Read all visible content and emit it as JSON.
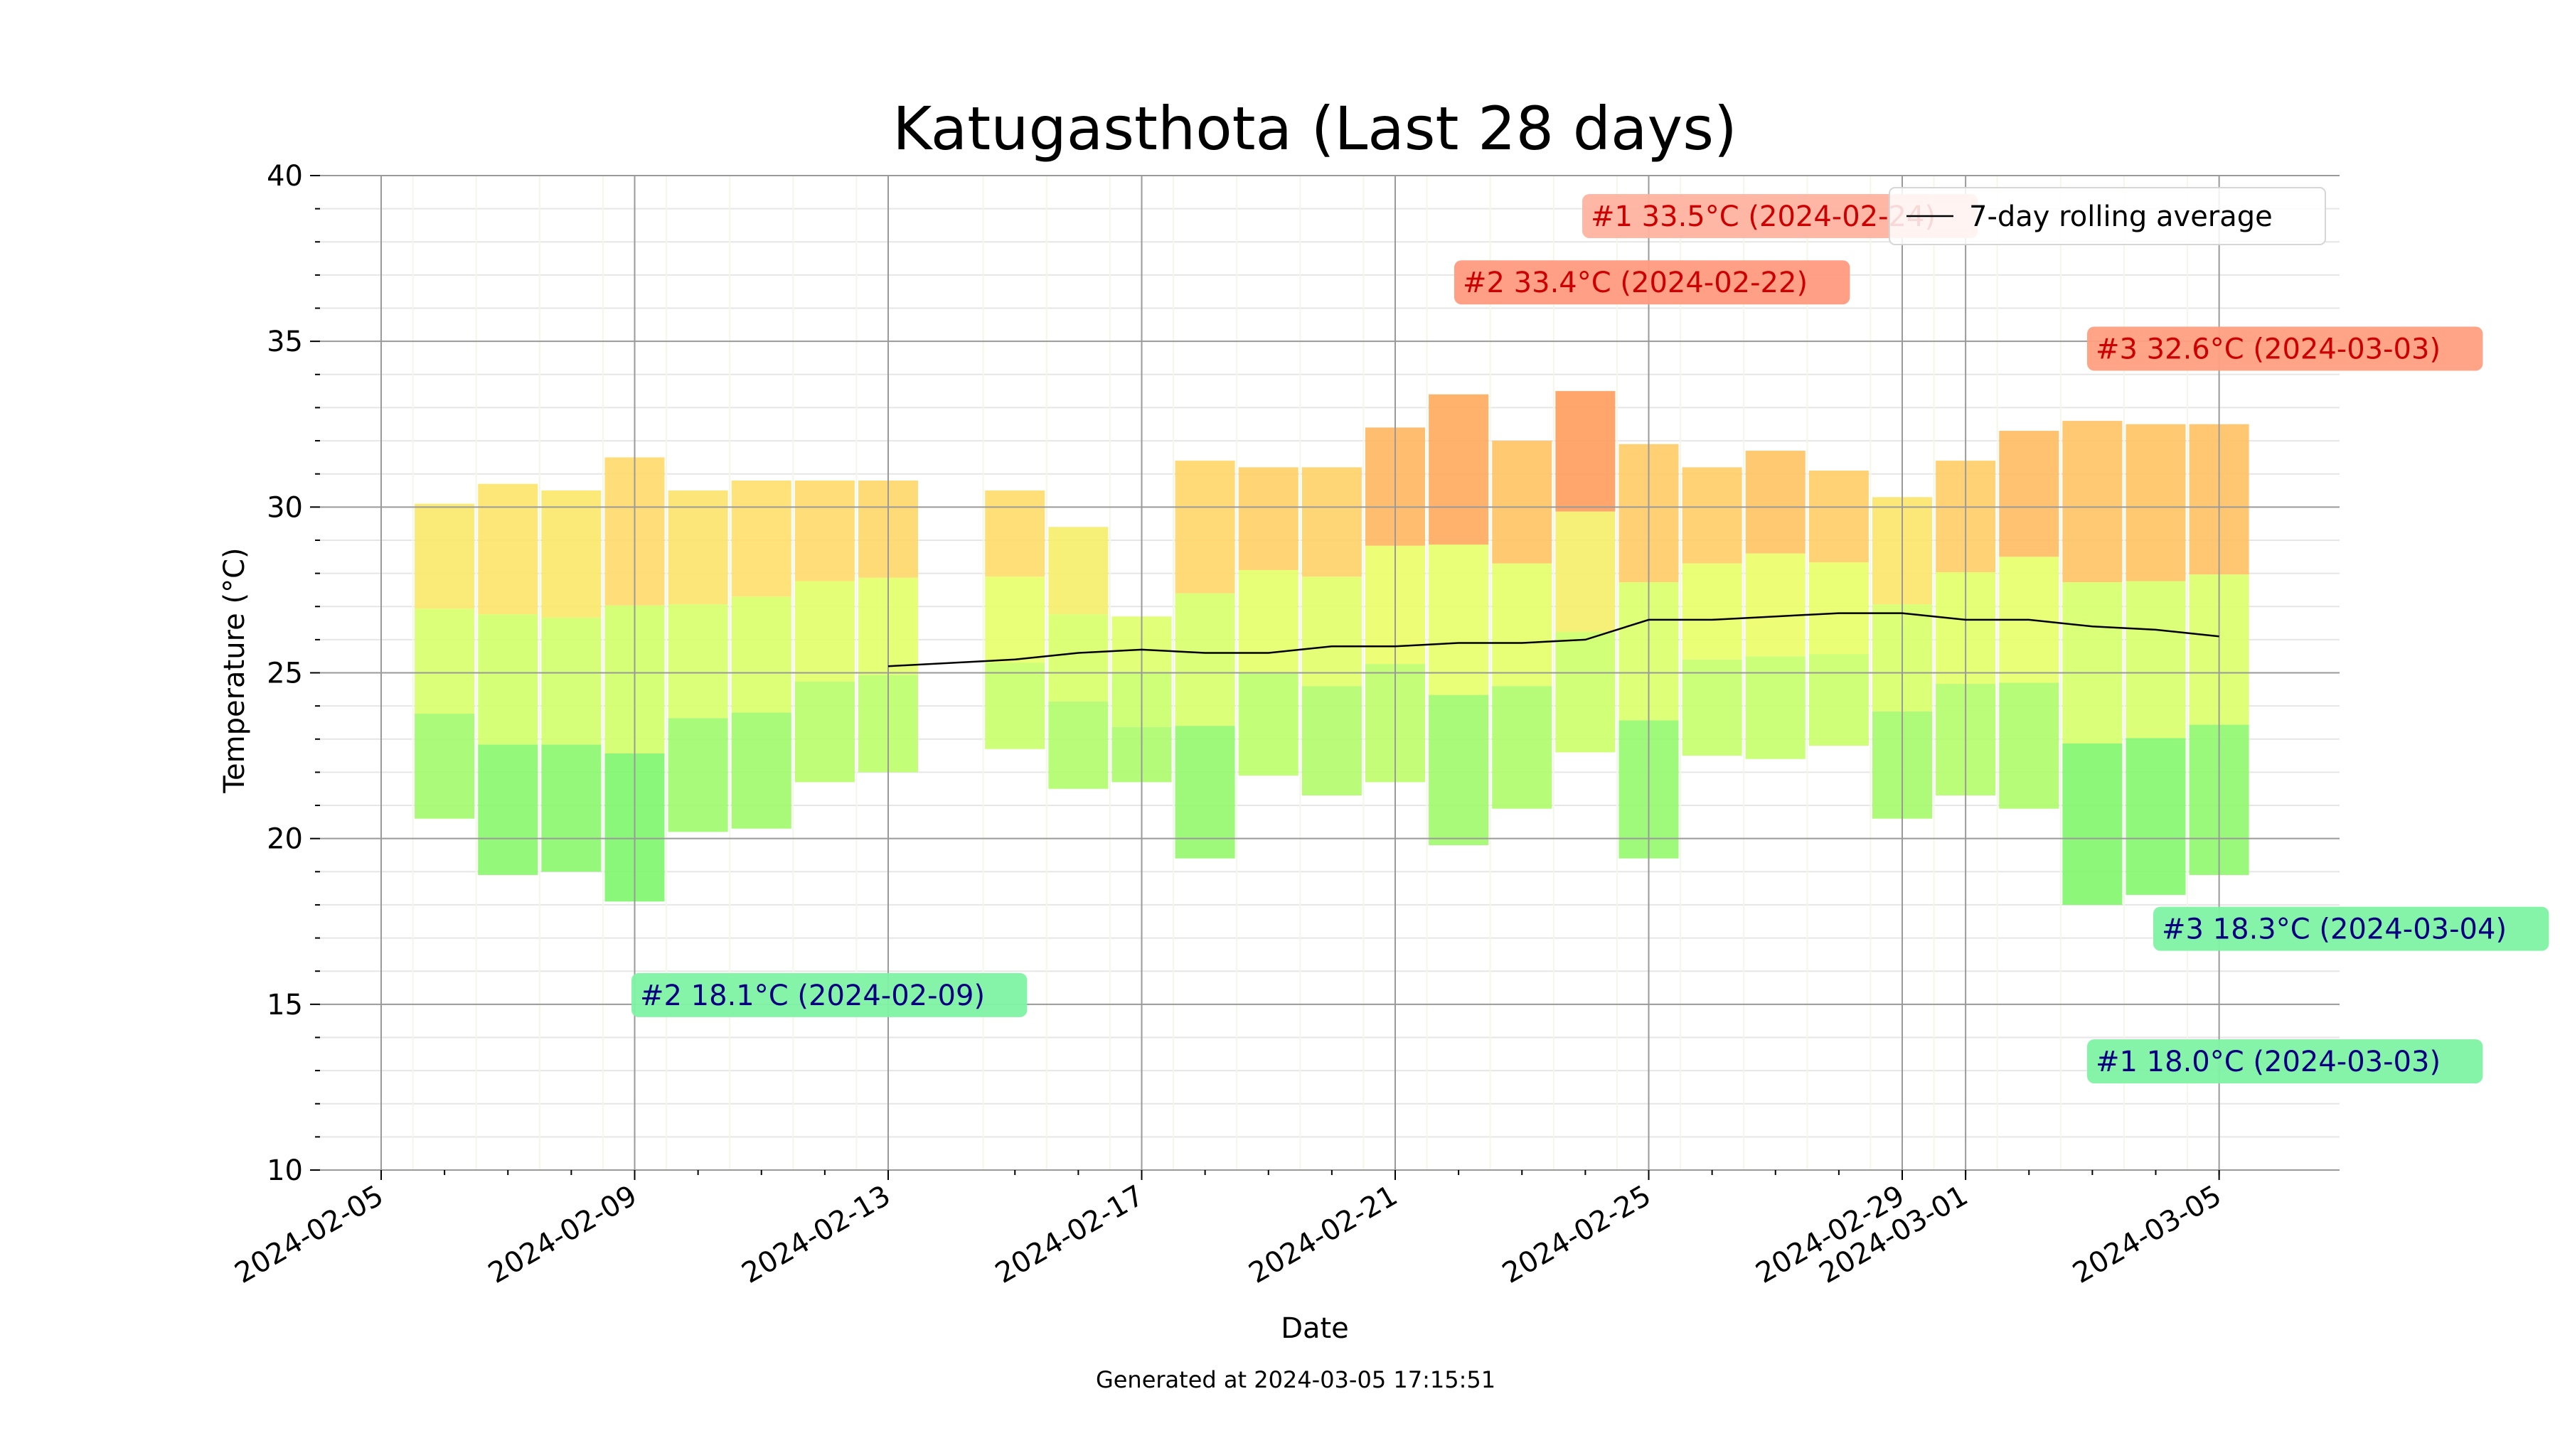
{
  "chart_data": {
    "type": "bar",
    "title": "Katugasthota (Last 28 days)",
    "xlabel": "Date",
    "ylabel": "Temperature (°C)",
    "footer": "Generated at 2024-03-05 17:15:51",
    "ylim": [
      10,
      40
    ],
    "y_ticks": [
      "10",
      "15",
      "20",
      "25",
      "30",
      "35",
      "40"
    ],
    "x_ticks": [
      "2024-02-05",
      "2024-02-09",
      "2024-02-13",
      "2024-02-17",
      "2024-02-21",
      "2024-02-25",
      "2024-02-29",
      "2024-03-01",
      "2024-03-05"
    ],
    "xlim": [
      "2024-02-05",
      "2024-03-07"
    ],
    "grid": true,
    "legend": {
      "position": "top-right",
      "entries": [
        "7-day rolling average"
      ]
    },
    "days": [
      {
        "date": "2024-02-06",
        "min": 20.6,
        "max": 30.1
      },
      {
        "date": "2024-02-07",
        "min": 18.9,
        "max": 30.7
      },
      {
        "date": "2024-02-08",
        "min": 19.0,
        "max": 30.5
      },
      {
        "date": "2024-02-09",
        "min": 18.1,
        "max": 31.5
      },
      {
        "date": "2024-02-10",
        "min": 20.2,
        "max": 30.5
      },
      {
        "date": "2024-02-11",
        "min": 20.3,
        "max": 30.8
      },
      {
        "date": "2024-02-12",
        "min": 21.7,
        "max": 30.8
      },
      {
        "date": "2024-02-13",
        "min": 22.0,
        "max": 30.8
      },
      {
        "date": "2024-02-15",
        "min": 22.7,
        "max": 30.5
      },
      {
        "date": "2024-02-16",
        "min": 21.5,
        "max": 29.4
      },
      {
        "date": "2024-02-17",
        "min": 21.7,
        "max": 26.7
      },
      {
        "date": "2024-02-18",
        "min": 19.4,
        "max": 31.4
      },
      {
        "date": "2024-02-19",
        "min": 21.9,
        "max": 31.2
      },
      {
        "date": "2024-02-20",
        "min": 21.3,
        "max": 31.2
      },
      {
        "date": "2024-02-21",
        "min": 21.7,
        "max": 32.4
      },
      {
        "date": "2024-02-22",
        "min": 19.8,
        "max": 33.4
      },
      {
        "date": "2024-02-23",
        "min": 20.9,
        "max": 32.0
      },
      {
        "date": "2024-02-24",
        "min": 22.6,
        "max": 33.5
      },
      {
        "date": "2024-02-25",
        "min": 19.4,
        "max": 31.9
      },
      {
        "date": "2024-02-26",
        "min": 22.5,
        "max": 31.2
      },
      {
        "date": "2024-02-27",
        "min": 22.4,
        "max": 31.7
      },
      {
        "date": "2024-02-28",
        "min": 22.8,
        "max": 31.1
      },
      {
        "date": "2024-02-29",
        "min": 20.6,
        "max": 30.3
      },
      {
        "date": "2024-03-01",
        "min": 21.3,
        "max": 31.4
      },
      {
        "date": "2024-03-02",
        "min": 20.9,
        "max": 32.3
      },
      {
        "date": "2024-03-03",
        "min": 18.0,
        "max": 32.6
      },
      {
        "date": "2024-03-04",
        "min": 18.3,
        "max": 32.5
      },
      {
        "date": "2024-03-05",
        "min": 18.9,
        "max": 32.5
      }
    ],
    "series": [
      {
        "name": "7-day rolling average",
        "color": "#000000",
        "points": [
          {
            "date": "2024-02-13",
            "value": 25.2
          },
          {
            "date": "2024-02-15",
            "value": 25.4
          },
          {
            "date": "2024-02-16",
            "value": 25.6
          },
          {
            "date": "2024-02-17",
            "value": 25.7
          },
          {
            "date": "2024-02-18",
            "value": 25.6
          },
          {
            "date": "2024-02-19",
            "value": 25.6
          },
          {
            "date": "2024-02-20",
            "value": 25.8
          },
          {
            "date": "2024-02-21",
            "value": 25.8
          },
          {
            "date": "2024-02-22",
            "value": 25.9
          },
          {
            "date": "2024-02-23",
            "value": 25.9
          },
          {
            "date": "2024-02-24",
            "value": 26.0
          },
          {
            "date": "2024-02-25",
            "value": 26.6
          },
          {
            "date": "2024-02-26",
            "value": 26.6
          },
          {
            "date": "2024-02-27",
            "value": 26.7
          },
          {
            "date": "2024-02-28",
            "value": 26.8
          },
          {
            "date": "2024-02-29",
            "value": 26.8
          },
          {
            "date": "2024-03-01",
            "value": 26.6
          },
          {
            "date": "2024-03-02",
            "value": 26.6
          },
          {
            "date": "2024-03-03",
            "value": 26.4
          },
          {
            "date": "2024-03-04",
            "value": 26.3
          },
          {
            "date": "2024-03-05",
            "value": 26.1
          }
        ]
      }
    ],
    "annotations": [
      {
        "text": "#1 33.5°C (2024-02-24)",
        "kind": "max",
        "date": "2024-02-24",
        "value": 38.8,
        "text_color": "#cc0000",
        "bg": "#ffb3a0"
      },
      {
        "text": "#2 33.4°C (2024-02-22)",
        "kind": "max",
        "date": "2024-02-22",
        "value": 36.8,
        "text_color": "#cc0000",
        "bg": "#ff9a80"
      },
      {
        "text": "#3 32.6°C (2024-03-03)",
        "kind": "max",
        "date": "2024-03-03",
        "value": 34.8,
        "text_color": "#cc0000",
        "bg": "#ff9f7f"
      },
      {
        "text": "#1 18.0°C (2024-03-03)",
        "kind": "min",
        "date": "2024-03-03",
        "value": 13.3,
        "text_color": "#000080",
        "bg": "#80f3a3"
      },
      {
        "text": "#2 18.1°C (2024-02-09)",
        "kind": "min",
        "date": "2024-02-09",
        "value": 15.3,
        "text_color": "#000080",
        "bg": "#80f3a3"
      },
      {
        "text": "#3 18.3°C (2024-03-04)",
        "kind": "min",
        "date": "2024-03-04",
        "value": 17.3,
        "text_color": "#000080",
        "bg": "#80f3a3"
      }
    ]
  }
}
